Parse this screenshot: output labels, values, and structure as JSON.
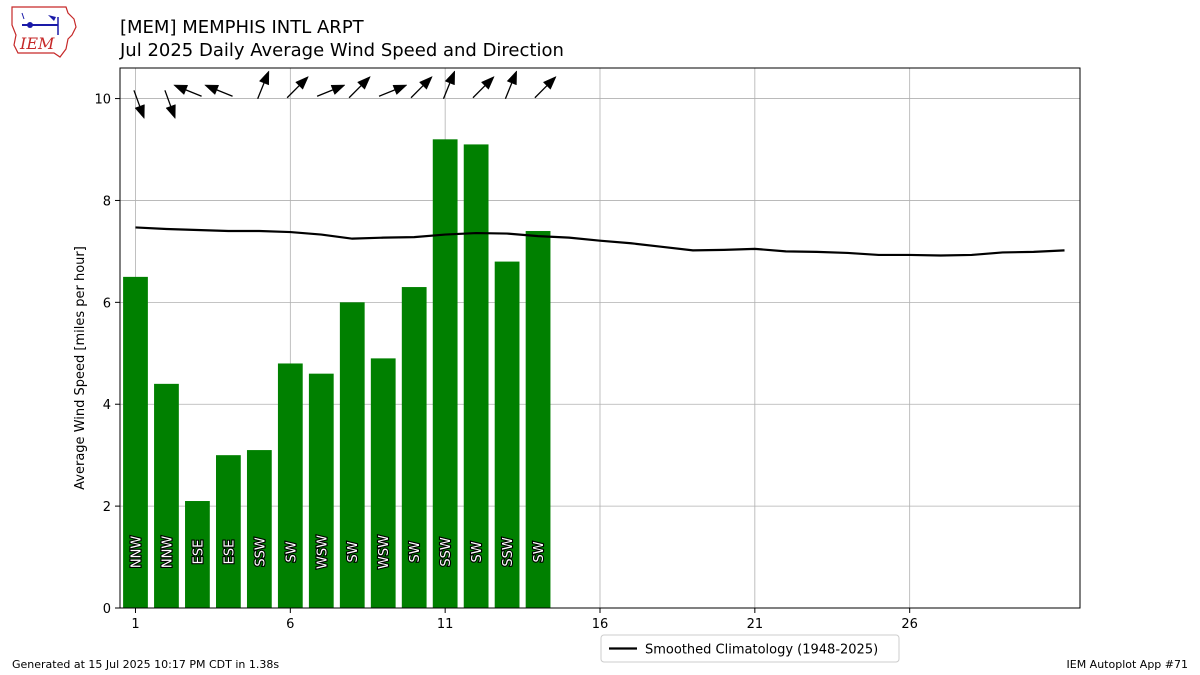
{
  "title_line1": "[MEM] MEMPHIS INTL ARPT",
  "title_line2": "Jul 2025 Daily Average Wind Speed and Direction",
  "footer_left": "Generated at 15 Jul 2025 10:17 PM CDT in 1.38s",
  "footer_right": "IEM Autoplot App #71",
  "logo_text": "IEM",
  "colors": {
    "bar": "#008000",
    "climatology": "#000000",
    "grid": "#b0b0b0",
    "logo": "#c62828"
  },
  "chart_data": {
    "type": "bar",
    "ylabel": "Average Wind Speed [miles per hour]",
    "xlim": [
      0.5,
      31.5
    ],
    "ylim": [
      0,
      10.6
    ],
    "xticks": [
      1,
      6,
      11,
      16,
      21,
      26
    ],
    "yticks": [
      0,
      2,
      4,
      6,
      8,
      10
    ],
    "grid": true,
    "legend_position": "bottom-center",
    "days": [
      1,
      2,
      3,
      4,
      5,
      6,
      7,
      8,
      9,
      10,
      11,
      12,
      13,
      14
    ],
    "values": [
      6.5,
      4.4,
      2.1,
      3.0,
      3.1,
      4.8,
      4.6,
      6.0,
      4.9,
      6.3,
      9.2,
      9.1,
      6.8,
      7.4
    ],
    "direction_labels": [
      "NNW",
      "NNW",
      "ESE",
      "ESE",
      "SSW",
      "SW",
      "WSW",
      "SW",
      "WSW",
      "SW",
      "SSW",
      "SW",
      "SSW",
      "SW"
    ],
    "direction_degrees": [
      340,
      340,
      112,
      112,
      202,
      225,
      248,
      225,
      248,
      225,
      202,
      225,
      202,
      225
    ],
    "climatology": {
      "name": "Smoothed Climatology (1948-2025)",
      "x": [
        1,
        2,
        3,
        4,
        5,
        6,
        7,
        8,
        9,
        10,
        11,
        12,
        13,
        14,
        15,
        16,
        17,
        18,
        19,
        20,
        21,
        22,
        23,
        24,
        25,
        26,
        27,
        28,
        29,
        30,
        31
      ],
      "y": [
        7.47,
        7.44,
        7.42,
        7.4,
        7.4,
        7.38,
        7.33,
        7.25,
        7.27,
        7.28,
        7.33,
        7.36,
        7.35,
        7.3,
        7.27,
        7.21,
        7.16,
        7.09,
        7.02,
        7.03,
        7.05,
        7.0,
        6.99,
        6.97,
        6.93,
        6.93,
        6.92,
        6.93,
        6.98,
        6.99,
        7.02
      ]
    }
  }
}
